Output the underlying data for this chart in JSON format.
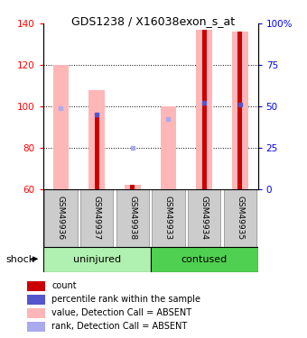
{
  "title": "GDS1238 / X16038exon_s_at",
  "samples": [
    "GSM49936",
    "GSM49937",
    "GSM49938",
    "GSM49933",
    "GSM49934",
    "GSM49935"
  ],
  "ylim": [
    60,
    140
  ],
  "yticks": [
    60,
    80,
    100,
    120,
    140
  ],
  "y2ticks": [
    0,
    25,
    50,
    75,
    100
  ],
  "y2labels": [
    "0",
    "25",
    "50",
    "75",
    "100%"
  ],
  "red_bars": [
    null,
    96,
    62,
    null,
    137,
    136
  ],
  "pink_bars_top": [
    120,
    108,
    62,
    100,
    137,
    136
  ],
  "blue_dots": [
    99,
    96,
    80,
    94,
    102,
    101
  ],
  "absent_samples": [
    0,
    2,
    3
  ],
  "red_color": "#cc0000",
  "pink_color": "#ffb6b6",
  "blue_dot_color": "#5555cc",
  "absent_blue_color": "#aaaaee",
  "group_uninjured_color": "#b0f0b0",
  "group_contused_color": "#50d050",
  "label_bg_color": "#cccccc",
  "legend_items": [
    {
      "color": "#cc0000",
      "label": "count"
    },
    {
      "color": "#5555cc",
      "label": "percentile rank within the sample"
    },
    {
      "color": "#ffb6b6",
      "label": "value, Detection Call = ABSENT"
    },
    {
      "color": "#aaaaee",
      "label": "rank, Detection Call = ABSENT"
    }
  ]
}
